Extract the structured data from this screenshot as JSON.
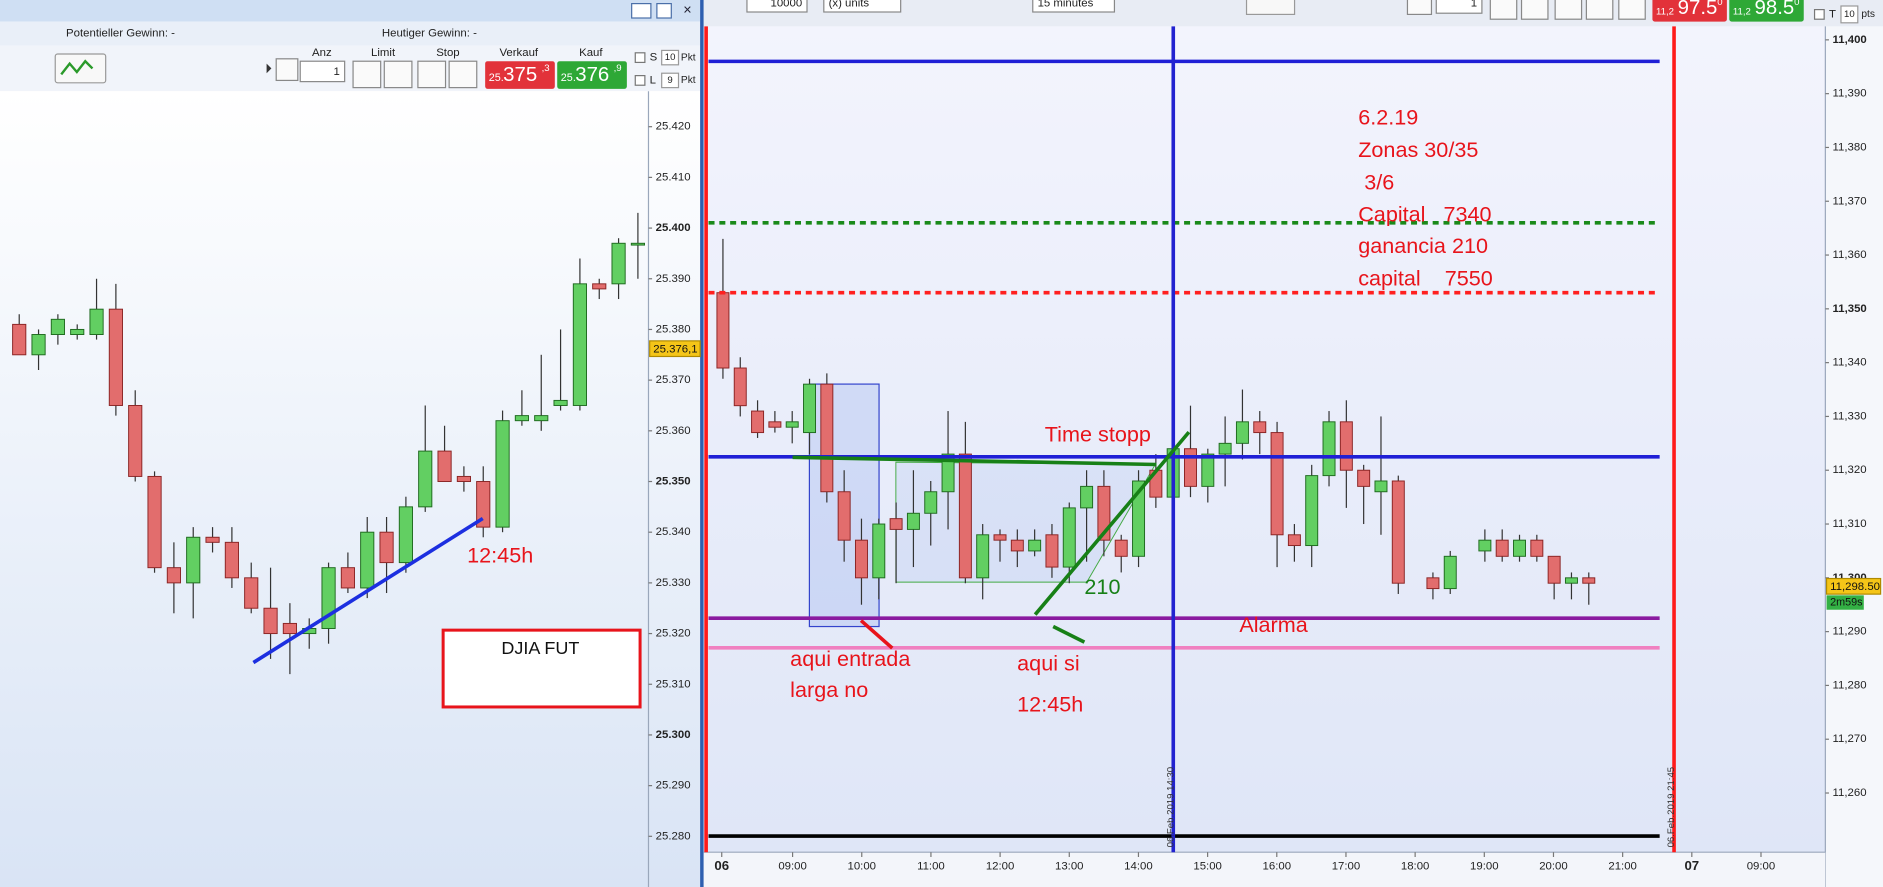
{
  "left_window": {
    "header_left": "Potentieller Gewinn: -",
    "header_right": "Heutiger Gewinn: -",
    "toolbar": {
      "anz_label": "Anz",
      "anz_value": "1",
      "limit_label": "Limit",
      "stop_label": "Stop",
      "sell_label": "Verkauf",
      "buy_label": "Kauf",
      "sell_price": {
        "small": "25.",
        "big": "375",
        "sup": ",3"
      },
      "buy_price": {
        "small": "25.",
        "big": "376",
        "sup": ",9"
      },
      "s_label": "S",
      "s_value": "10",
      "s_unit": "Pkt",
      "l_label": "L",
      "l_value": "9",
      "l_unit": "Pkt"
    },
    "price_tag": "25.376,1",
    "annotations": {
      "time": "12:45h",
      "instrument": "DJIA FUT"
    }
  },
  "right_window": {
    "quantity": "10000",
    "units": "(x) units",
    "interval": "15 minutes",
    "order_qty": "1",
    "sell_price": {
      "small": "11,2",
      "big": "97.5",
      "sup": "0"
    },
    "buy_price": {
      "small": "11,2",
      "big": "98.5",
      "sup": "0"
    },
    "t_label": "T",
    "t_value": "10",
    "t_unit": "pts",
    "price_tag": "11,298.50",
    "countdown": "2m59s",
    "x_labels": [
      "06",
      "09:00",
      "10:00",
      "11:00",
      "12:00",
      "13:00",
      "14:00",
      "15:00",
      "16:00",
      "17:00",
      "18:00",
      "19:00",
      "20:00",
      "21:00",
      "07",
      "09:00"
    ],
    "vline_labels": [
      "06.Feb.2019 14:30",
      "06.Feb.2019 21:45"
    ],
    "notes": [
      "6.2.19",
      "Zonas 30/35",
      "3/6",
      "Capital   7340",
      "ganancia 210",
      "capital    7550"
    ],
    "annotations": {
      "time_stop": "Time stopp",
      "gain": "210",
      "alarm": "Alarma",
      "entry_1": "aqui entrada",
      "entry_2": "larga no",
      "here_1": "aqui si",
      "here_2": "12:45h"
    }
  },
  "chart_data": [
    {
      "type": "candlestick",
      "up_color": "#62cf62",
      "down_color": "#e26d6d",
      "ylim": [
        25.27,
        25.427
      ],
      "yticks": [
        {
          "value": 25.28,
          "label": "25.280"
        },
        {
          "value": 25.29,
          "label": "25.290"
        },
        {
          "value": 25.3,
          "label": "25.300"
        },
        {
          "value": 25.31,
          "label": "25.310"
        },
        {
          "value": 25.32,
          "label": "25.320"
        },
        {
          "value": 25.33,
          "label": "25.330"
        },
        {
          "value": 25.34,
          "label": "25.340"
        },
        {
          "value": 25.35,
          "label": "25.350"
        },
        {
          "value": 25.36,
          "label": "25.360"
        },
        {
          "value": 25.37,
          "label": "25.370"
        },
        {
          "value": 25.38,
          "label": "25.380"
        },
        {
          "value": 25.39,
          "label": "25.390"
        },
        {
          "value": 25.4,
          "label": "25.400"
        },
        {
          "value": 25.41,
          "label": "25.410"
        },
        {
          "value": 25.42,
          "label": "25.420"
        }
      ],
      "open": [
        25.381,
        25.375,
        25.379,
        25.379,
        25.379,
        25.384,
        25.365,
        25.351,
        25.333,
        25.33,
        25.339,
        25.338,
        25.331,
        25.325,
        25.322,
        25.32,
        25.321,
        25.333,
        25.329,
        25.34,
        25.334,
        25.345,
        25.356,
        25.351,
        25.35,
        25.341,
        25.362,
        25.362,
        25.365,
        25.365,
        25.389,
        25.389,
        25.397
      ],
      "high": [
        25.383,
        25.38,
        25.383,
        25.381,
        25.39,
        25.389,
        25.368,
        25.352,
        25.338,
        25.341,
        25.341,
        25.341,
        25.334,
        25.333,
        25.326,
        25.323,
        25.334,
        25.336,
        25.343,
        25.343,
        25.347,
        25.365,
        25.361,
        25.353,
        25.353,
        25.364,
        25.368,
        25.375,
        25.38,
        25.394,
        25.39,
        25.398,
        25.403
      ],
      "low": [
        25.375,
        25.372,
        25.377,
        25.378,
        25.378,
        25.363,
        25.35,
        25.332,
        25.324,
        25.323,
        25.336,
        25.329,
        25.324,
        25.315,
        25.312,
        25.317,
        25.318,
        25.328,
        25.327,
        25.328,
        25.332,
        25.344,
        25.35,
        25.348,
        25.339,
        25.34,
        25.361,
        25.36,
        25.364,
        25.364,
        25.386,
        25.386,
        25.39
      ],
      "close": [
        25.375,
        25.379,
        25.382,
        25.38,
        25.384,
        25.365,
        25.351,
        25.333,
        25.33,
        25.339,
        25.338,
        25.331,
        25.325,
        25.32,
        25.32,
        25.321,
        25.333,
        25.329,
        25.34,
        25.334,
        25.345,
        25.356,
        25.35,
        25.35,
        25.341,
        25.362,
        25.363,
        25.363,
        25.366,
        25.389,
        25.388,
        25.397,
        25.397
      ]
    },
    {
      "type": "candlestick",
      "up_color": "#62cf62",
      "down_color": "#e26d6d",
      "ylim": [
        11249,
        11402.5
      ],
      "yticks": [
        {
          "value": 11260,
          "label": "11,260"
        },
        {
          "value": 11270,
          "label": "11,270"
        },
        {
          "value": 11280,
          "label": "11,280"
        },
        {
          "value": 11290,
          "label": "11,290"
        },
        {
          "value": 11300,
          "label": "11,300"
        },
        {
          "value": 11310,
          "label": "11,310"
        },
        {
          "value": 11320,
          "label": "11,320"
        },
        {
          "value": 11330,
          "label": "11,330"
        },
        {
          "value": 11340,
          "label": "11,340"
        },
        {
          "value": 11350,
          "label": "11,350"
        },
        {
          "value": 11360,
          "label": "11,360"
        },
        {
          "value": 11370,
          "label": "11,370"
        },
        {
          "value": 11380,
          "label": "11,380"
        },
        {
          "value": 11390,
          "label": "11,390"
        },
        {
          "value": 11400,
          "label": "11,400"
        }
      ],
      "open": [
        11353,
        11339,
        11331,
        11329,
        11328,
        11327,
        11336,
        11316,
        11307,
        11300,
        11311,
        11309,
        11312,
        11316,
        11323,
        11300,
        11308,
        11307,
        11305,
        11308,
        11302,
        11313,
        11317,
        11307,
        11304,
        11320,
        11315,
        11324,
        11317,
        11323,
        11325,
        11329,
        11327,
        11308,
        11306,
        11319,
        11329,
        11320,
        11316,
        11318,
        null,
        11300,
        11298,
        null,
        11305,
        11307,
        11304,
        11307,
        11304,
        11299,
        11300
      ],
      "high": [
        11363,
        11341,
        11333,
        11331,
        11331,
        11337,
        11338,
        11320,
        11311,
        11311,
        11314,
        11320,
        11318,
        11331,
        11329,
        11310,
        11309,
        11309,
        11309,
        11310,
        11314,
        11320,
        11320,
        11308,
        11320,
        11323,
        11326,
        11332,
        11324,
        11330,
        11335,
        11331,
        11329,
        11310,
        11321,
        11331,
        11333,
        11321,
        11330,
        11319,
        null,
        11301,
        11305,
        null,
        11309,
        11309,
        11308,
        11308,
        11304,
        11301,
        11301
      ],
      "low": [
        11337,
        11330,
        11326,
        11327,
        11325,
        11323,
        11314,
        11303,
        11295,
        11296,
        11299,
        11302,
        11306,
        11309,
        11299,
        11296,
        11303,
        11302,
        11304,
        11300,
        11299,
        11303,
        11304,
        11301,
        11302,
        11313,
        11313,
        11315,
        11314,
        11317,
        11322,
        11323,
        11302,
        11303,
        11302,
        11317,
        11313,
        11310,
        11308,
        11297,
        null,
        11296,
        11297,
        null,
        11303,
        11303,
        11303,
        11303,
        11296,
        11296,
        11295
      ],
      "close": [
        11339,
        11332,
        11327,
        11328,
        11329,
        11336,
        11316,
        11307,
        11300,
        11310,
        11309,
        11312,
        11316,
        11323,
        11300,
        11308,
        11307,
        11305,
        11307,
        11302,
        11313,
        11317,
        11307,
        11304,
        11318,
        11315,
        11324,
        11317,
        11323,
        11325,
        11329,
        11327,
        11308,
        11306,
        11319,
        11329,
        11320,
        11317,
        11318,
        11299,
        null,
        11298,
        11304,
        null,
        11307,
        11304,
        11307,
        11304,
        11299,
        11300,
        11299
      ],
      "levels": [
        {
          "value": 11396,
          "color": "#1f1fd6",
          "dashed": false
        },
        {
          "value": 11366,
          "color": "#1a8a1a",
          "dashed": true
        },
        {
          "value": 11353,
          "color": "#ff2020",
          "dashed": true
        },
        {
          "value": 11322.5,
          "color": "#1f1fd6",
          "dashed": false
        },
        {
          "value": 11292.5,
          "color": "#8a1aa0",
          "dashed": false
        },
        {
          "value": 11287,
          "color": "#f080c0",
          "dashed": false
        },
        {
          "value": 11252,
          "color": "#000000",
          "dashed": false
        }
      ]
    }
  ]
}
